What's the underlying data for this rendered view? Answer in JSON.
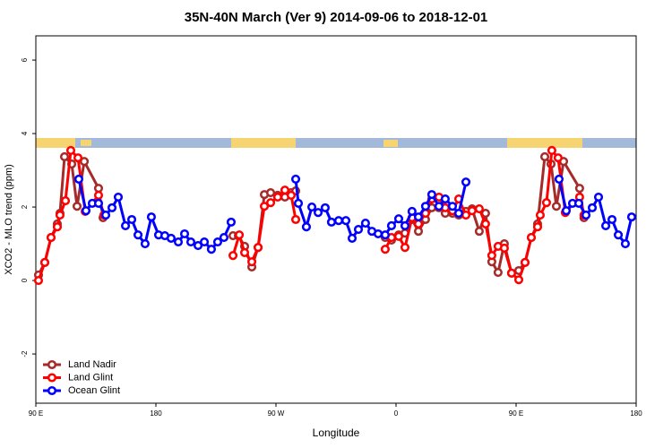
{
  "chart_data": {
    "type": "line",
    "title": "35N-40N March (Ver 9)   2014-09-06 to 2018-12-01",
    "x_label": "Longitude",
    "y_label": "XCO2 - MLO trend (ppm)",
    "xlim": [
      90,
      540
    ],
    "xticks": [
      {
        "value": 90,
        "label": "90 E"
      },
      180,
      {
        "value": 270,
        "label": "90 W"
      },
      {
        "value": 360,
        "label": "0"
      },
      {
        "value": 450,
        "label": "90 E"
      },
      180.0001
    ],
    "ylim": [
      -3.34,
      6.66
    ],
    "yticks": [
      -2,
      0,
      2,
      4,
      6
    ],
    "legend": "bottom-left",
    "series": [
      {
        "name": "Land Nadir",
        "color": "#a52a2a",
        "x": [
          92,
          96.7,
          101.4,
          106.1,
          108.1,
          111.5,
          116.9,
          120.9,
          126.3,
          137,
          140.4,
          null,
          237.8,
          241.8,
          246.5,
          251.9,
          256.6,
          261.3,
          266,
          271.3,
          276.7,
          281.4,
          284.8,
          null,
          351.9,
          356.6,
          362,
          366.7,
          372,
          376.8,
          382.1,
          386.8,
          392.2,
          396.9,
          402.3,
          407,
          412.4,
          417,
          422.4,
          427.1,
          431.8,
          436.5,
          441.2,
          446.6,
          452,
          456.7,
          461.4,
          466.1,
          471.5,
          476.2,
          480.2,
          485.6,
          497.6,
          500.9
        ],
        "values": [
          0.15,
          0.49,
          1.17,
          1.54,
          1.83,
          3.37,
          3.17,
          2.02,
          3.24,
          2.51,
          1.71,
          null,
          1.22,
          1.22,
          0.93,
          0.37,
          0.9,
          2.34,
          2.39,
          2.32,
          2.27,
          2.39,
          2.44,
          null,
          1.17,
          1.1,
          1.24,
          1.29,
          1.66,
          1.34,
          1.66,
          1.98,
          1.98,
          1.83,
          1.83,
          1.78,
          1.88,
          1.95,
          1.34,
          1.83,
          0.51,
          0.22,
          1.0,
          0.2,
          0.27,
          0.49,
          1.17,
          1.54,
          3.37,
          3.17,
          2.02,
          3.24,
          2.51,
          1.71
        ]
      },
      {
        "name": "Land Glint",
        "color": "#ff0000",
        "x": [
          92,
          96.7,
          101.4,
          106.1,
          108.1,
          112.2,
          116.2,
          121.6,
          127,
          137,
          141,
          null,
          237.8,
          242.5,
          246.5,
          251.9,
          256.6,
          261.3,
          266,
          271.3,
          276.7,
          281.4,
          284.8,
          null,
          351.9,
          356.6,
          362,
          366.7,
          372,
          376.8,
          382.1,
          386.8,
          392.2,
          396.9,
          402.3,
          407,
          412.4,
          417,
          422.4,
          427.1,
          431.8,
          436.5,
          441.2,
          446.6,
          452,
          456.7,
          461.4,
          466.1,
          468.1,
          472.8,
          476.8,
          481.5,
          486.9,
          497.6,
          500.9
        ],
        "values": [
          0.0,
          0.49,
          1.17,
          1.46,
          1.78,
          2.17,
          3.54,
          3.34,
          1.88,
          2.32,
          1.78,
          null,
          0.68,
          1.24,
          0.76,
          0.51,
          0.9,
          2.02,
          2.12,
          2.27,
          2.46,
          2.32,
          1.66,
          null,
          0.85,
          1.17,
          1.2,
          0.9,
          1.71,
          1.54,
          1.83,
          2.22,
          2.27,
          1.98,
          1.9,
          2.22,
          1.78,
          1.9,
          1.95,
          1.54,
          0.68,
          0.93,
          0.88,
          0.2,
          0.02,
          0.49,
          1.17,
          1.46,
          1.78,
          2.12,
          3.54,
          3.34,
          1.85,
          2.27,
          1.78
        ]
      },
      {
        "name": "Ocean Glint",
        "color": "#0000ff",
        "x": [
          122.2,
          127.6,
          132.3,
          137,
          142.4,
          147.1,
          151.8,
          157.2,
          161.9,
          166.6,
          171.9,
          176.6,
          182,
          186.7,
          191.4,
          196.8,
          201.5,
          206.2,
          211.6,
          216.3,
          221.6,
          226.3,
          231,
          236.4,
          null,
          284.8,
          286.8,
          292.8,
          296.9,
          301.6,
          306.9,
          311.6,
          317,
          322.4,
          327.1,
          331.8,
          337.1,
          341.9,
          346.6,
          351.9,
          356.6,
          362,
          366.7,
          372,
          376.8,
          382.1,
          386.8,
          392.2,
          396.9,
          402.3,
          407,
          412.4,
          null,
          482.2,
          487.6,
          492.3,
          497,
          502.4,
          507.1,
          511.8,
          517.2,
          521.9,
          526.6,
          531.9,
          536.6
        ],
        "values": [
          2.76,
          1.9,
          2.1,
          2.1,
          1.78,
          1.98,
          2.27,
          1.49,
          1.66,
          1.24,
          1.0,
          1.73,
          1.24,
          1.22,
          1.15,
          1.05,
          1.27,
          1.05,
          0.95,
          1.05,
          0.85,
          1.05,
          1.17,
          1.59,
          null,
          2.76,
          2.1,
          1.46,
          2.0,
          1.85,
          1.98,
          1.59,
          1.63,
          1.63,
          1.15,
          1.39,
          1.56,
          1.34,
          1.27,
          1.24,
          1.49,
          1.68,
          1.49,
          1.88,
          1.73,
          2.02,
          2.34,
          2.02,
          2.22,
          2.02,
          1.83,
          2.68,
          null,
          2.76,
          1.9,
          2.1,
          2.1,
          1.78,
          1.98,
          2.27,
          1.49,
          1.66,
          1.24,
          1.0,
          1.73
        ]
      }
    ]
  }
}
